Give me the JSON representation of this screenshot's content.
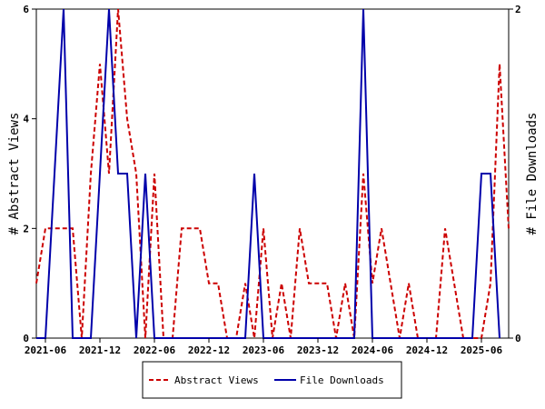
{
  "chart_data": {
    "type": "line",
    "x_start": "2021-05",
    "x_interval": "month",
    "x_tick_labels": [
      "2021-06",
      "2021-12",
      "2022-06",
      "2022-12",
      "2023-06",
      "2023-12",
      "2024-06",
      "2024-12",
      "2025-06"
    ],
    "y_left": {
      "label": "# Abstract Views",
      "lim": [
        0,
        6
      ],
      "ticks": [
        "0",
        "2",
        "4",
        "6"
      ]
    },
    "y_right": {
      "label": "# File Downloads",
      "lim": [
        0,
        2
      ],
      "ticks": [
        "0",
        "2"
      ]
    },
    "grid": false,
    "legend_position": "bottom",
    "series": [
      {
        "name": "Abstract Views",
        "axis": "left",
        "color": "#cc0000",
        "style": "dashed",
        "values": [
          1,
          2,
          2,
          2,
          2,
          0,
          3,
          5,
          3,
          6,
          4,
          3,
          0,
          3,
          0,
          0,
          2,
          2,
          2,
          1,
          1,
          0,
          0,
          1,
          0,
          2,
          0,
          1,
          0,
          2,
          1,
          1,
          1,
          0,
          1,
          0,
          3,
          1,
          2,
          1,
          0,
          1,
          0,
          0,
          0,
          2,
          1,
          0,
          0,
          0,
          1,
          5,
          2
        ]
      },
      {
        "name": "File Downloads",
        "axis": "right",
        "color": "#0000aa",
        "style": "solid",
        "values": [
          0,
          0,
          1,
          2,
          0,
          0,
          0,
          1,
          2,
          1,
          1,
          0,
          1,
          0,
          0,
          0,
          0,
          0,
          0,
          0,
          0,
          0,
          0,
          0,
          1,
          0,
          0,
          0,
          0,
          0,
          0,
          0,
          0,
          0,
          0,
          0,
          2,
          0,
          0,
          0,
          0,
          0,
          0,
          0,
          0,
          0,
          0,
          0,
          0,
          1,
          1,
          0
        ]
      }
    ]
  }
}
